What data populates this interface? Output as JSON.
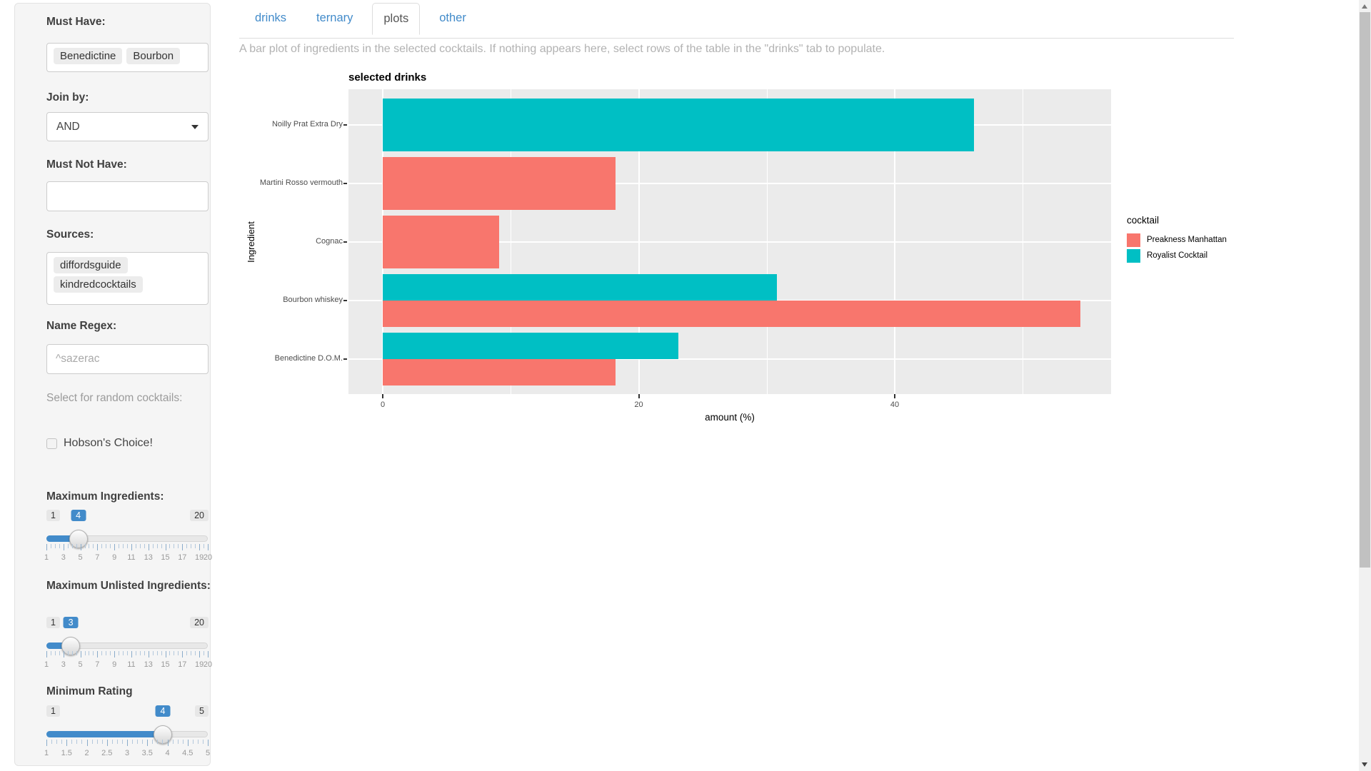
{
  "sidebar": {
    "must_have": {
      "label": "Must Have:",
      "tags": [
        "Benedictine",
        "Bourbon"
      ]
    },
    "join_by": {
      "label": "Join by:",
      "value": "AND"
    },
    "must_not_have": {
      "label": "Must Not Have:",
      "value": ""
    },
    "sources": {
      "label": "Sources:",
      "tags": [
        "diffordsguide",
        "kindredcocktails"
      ]
    },
    "name_regex": {
      "label": "Name Regex:",
      "placeholder": "^sazerac"
    },
    "random_note": "Select for random cocktails:",
    "hobsons": {
      "label": "Hobson's Choice!",
      "checked": false
    },
    "sliders": [
      {
        "label": "Maximum Ingredients:",
        "min": 1,
        "max": 20,
        "value": 4,
        "min_label": "1",
        "max_label": "20",
        "value_label": "4",
        "tick_labels": [
          1,
          3,
          5,
          7,
          9,
          11,
          13,
          15,
          17,
          19,
          20
        ]
      },
      {
        "label": "Maximum Unlisted Ingredients:",
        "min": 1,
        "max": 20,
        "value": 3,
        "min_label": "1",
        "max_label": "20",
        "value_label": "3",
        "tick_labels": [
          1,
          3,
          5,
          7,
          9,
          11,
          13,
          15,
          17,
          19,
          20
        ]
      },
      {
        "label": "Minimum Rating",
        "min": 1,
        "max": 5,
        "value": 4,
        "min_label": "1",
        "max_label": "5",
        "value_label": "4",
        "tick_labels": [
          1,
          1.5,
          2,
          2.5,
          3,
          3.5,
          4,
          4.5,
          5
        ]
      }
    ]
  },
  "tabs": [
    {
      "label": "drinks",
      "active": false
    },
    {
      "label": "ternary",
      "active": false
    },
    {
      "label": "plots",
      "active": true
    },
    {
      "label": "other",
      "active": false
    }
  ],
  "description": "A bar plot of ingredients in the selected cocktails. If nothing appears here, select rows of the table in the \"drinks\" tab to populate.",
  "chart_data": {
    "type": "bar",
    "orientation": "horizontal",
    "title": "selected drinks",
    "xlabel": "amount (%)",
    "ylabel": "Ingredient",
    "legend_title": "cocktail",
    "legend_position": "right",
    "categories": [
      "Noilly Prat Extra Dry",
      "Martini Rosso vermouth",
      "Cognac",
      "Bourbon whiskey",
      "Benedictine D.O.M."
    ],
    "series": [
      {
        "name": "Preakness Manhattan",
        "color": "#F8766D",
        "values": [
          null,
          18.2,
          9.1,
          54.5,
          18.2
        ]
      },
      {
        "name": "Royalist Cocktail",
        "color": "#00BFC4",
        "values": [
          46.2,
          null,
          null,
          30.8,
          23.1
        ]
      }
    ],
    "x_ticks": [
      0,
      20,
      40
    ],
    "x_gridlines_major": [
      0,
      20,
      40
    ],
    "x_gridlines_minor": [
      10,
      30,
      50
    ],
    "xlim": [
      -2.7,
      57
    ],
    "panel_bg": "#EBEBEB",
    "grid_color": "#FFFFFF"
  },
  "icons": {
    "scroll_up": "scroll-up-arrow",
    "scroll_down": "scroll-down-arrow",
    "join_caret": "caret-down"
  },
  "colors": {
    "accent_blue": "#428bca",
    "bar_red": "#F8766D",
    "bar_teal": "#00BFC4",
    "well_bg": "#f5f5f5",
    "panel_bg": "#ebebeb"
  }
}
